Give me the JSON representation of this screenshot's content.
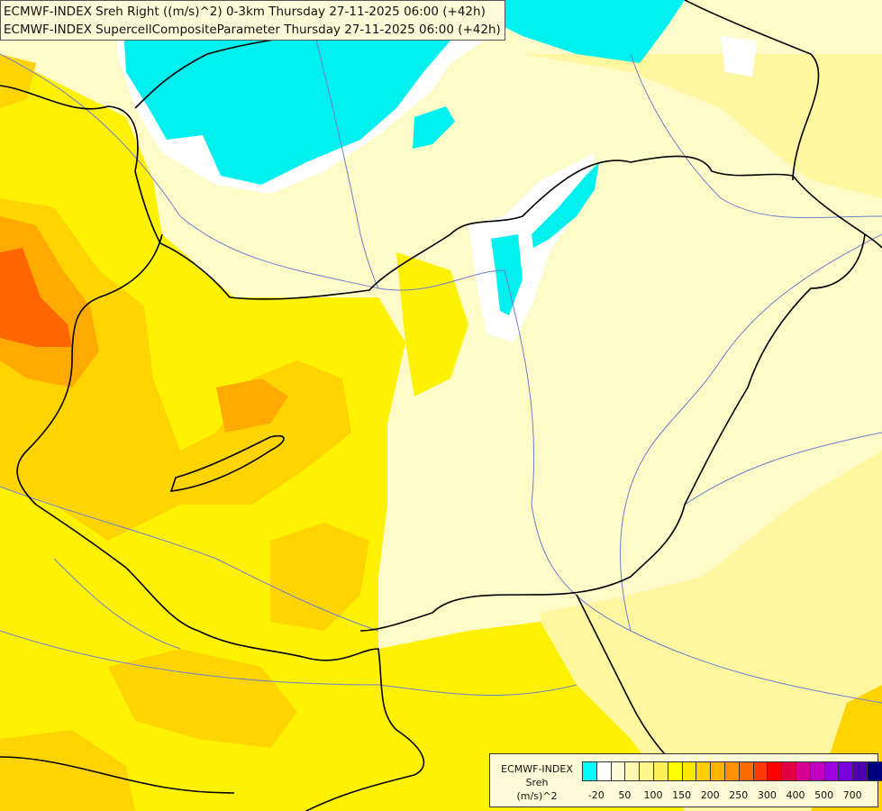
{
  "titles": {
    "line1": "ECMWF-INDEX Sreh Right ((m/s)^2) 0-3km Thursday 27-11-2025 06:00 (+42h)",
    "line2": "ECMWF-INDEX SupercellCompositeParameter Thursday 27-11-2025 06:00 (+42h)"
  },
  "legend": {
    "product": "ECMWF-INDEX",
    "variable": "Sreh",
    "unit": "(m/s)^2",
    "colors": [
      "#00ffff",
      "#ffffff",
      "#fffbd8",
      "#fff9b0",
      "#fff58a",
      "#ffee55",
      "#ffff00",
      "#ffe600",
      "#ffcc00",
      "#ffb400",
      "#ff9000",
      "#ff6a00",
      "#ff3a00",
      "#ff0000",
      "#e00040",
      "#d40090",
      "#c000c0",
      "#a000e0",
      "#7a00e0",
      "#4a00b0",
      "#000080"
    ],
    "ticks": [
      "-20",
      "50",
      "100",
      "150",
      "200",
      "250",
      "300",
      "400",
      "500",
      "700"
    ]
  },
  "map_colors": {
    "low_negative": "#00f0f0",
    "near_zero": "#ffffff",
    "band_pale": "#fffbc8",
    "band_light": "#fff7a0",
    "band_yellow": "#fff200",
    "band_gold": "#ffd400",
    "band_orange": "#ffaa00",
    "band_deep_orange": "#ff6600",
    "border": "#000000",
    "river": "#6b7fd0"
  }
}
